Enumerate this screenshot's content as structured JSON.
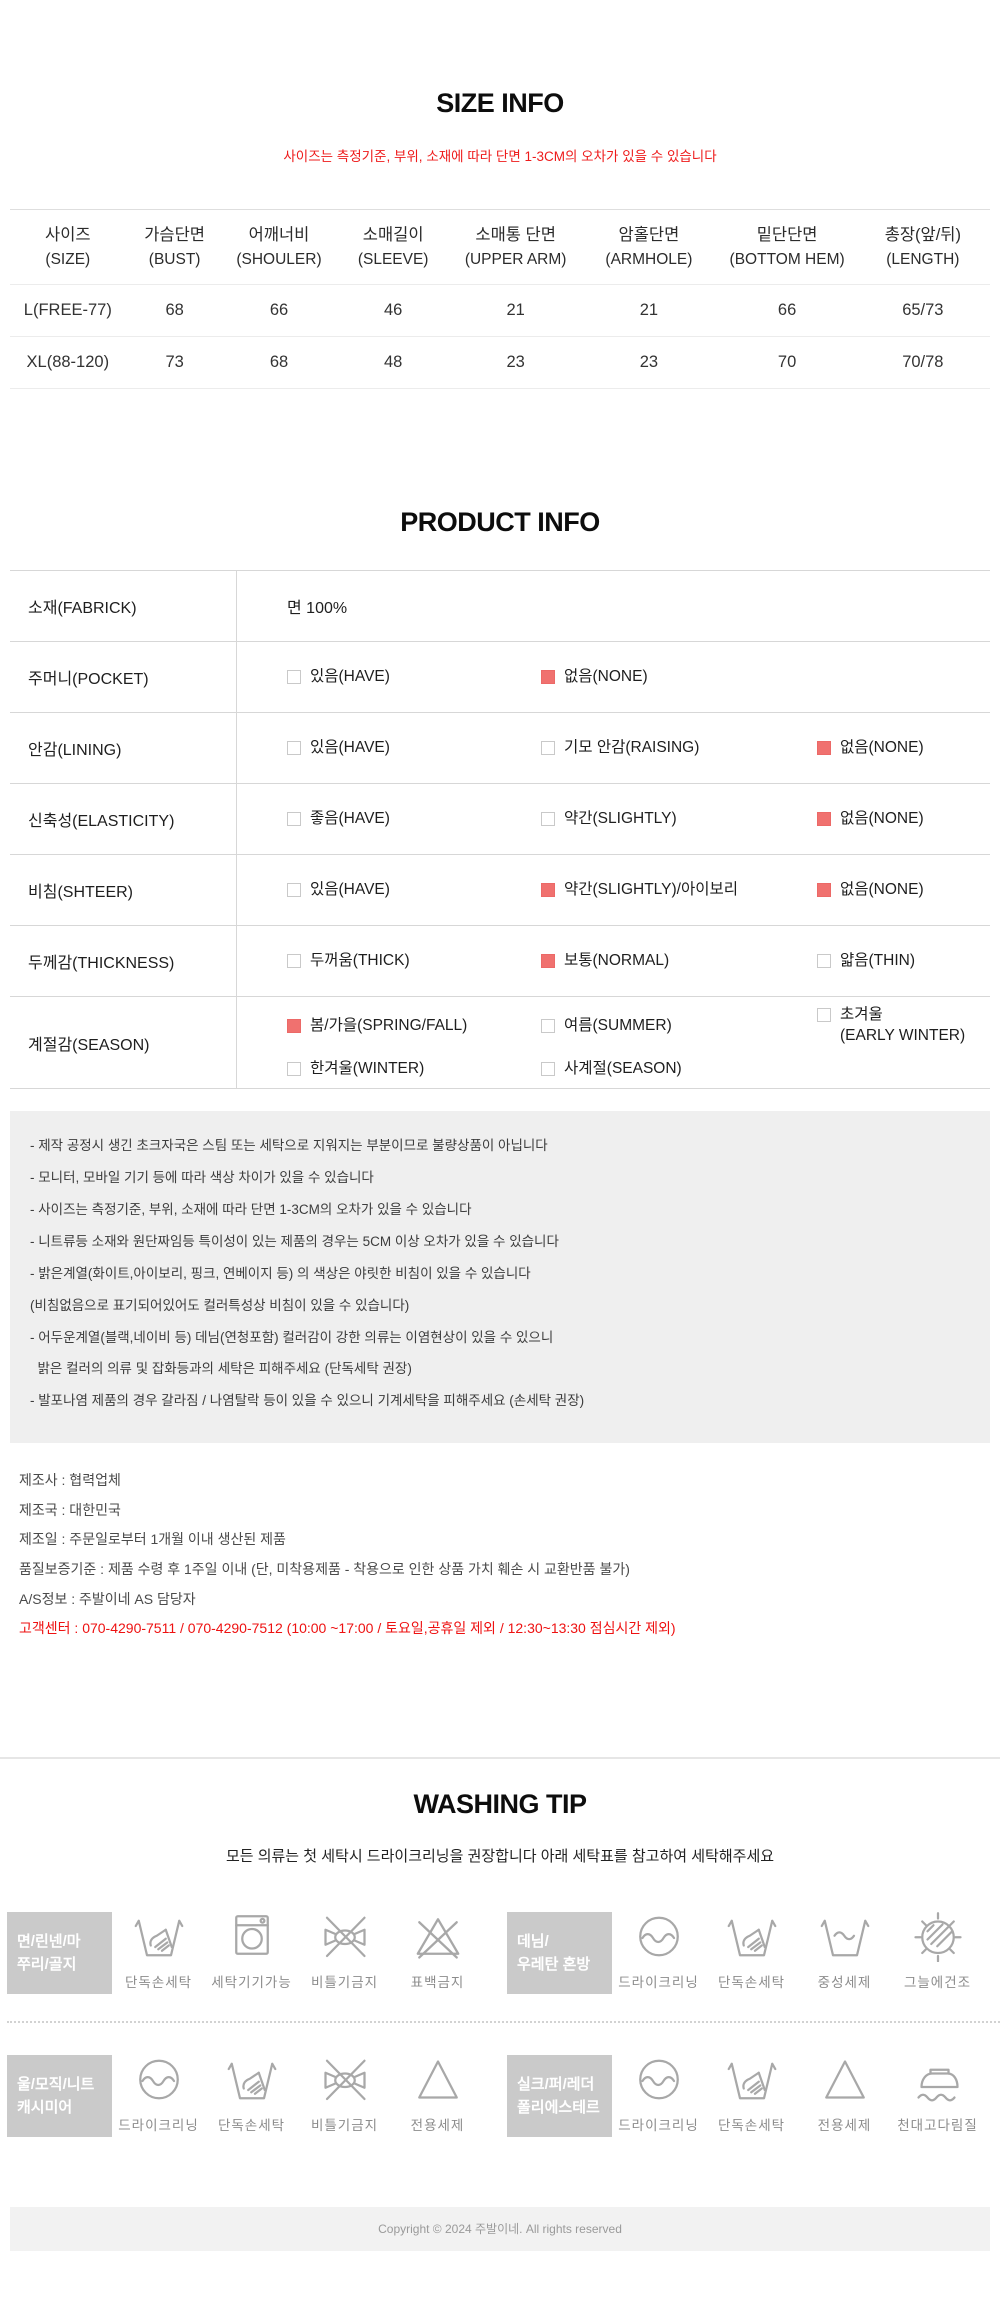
{
  "colors": {
    "accent_red": "#ee1b1b",
    "checkbox_checked": "#f0716f",
    "fabric_label_gray": "#cacaca",
    "notes_box_gray": "#efefef"
  },
  "size_info": {
    "title": "SIZE INFO",
    "subtitle": "사이즈는 측정기준, 부위, 소재에 따라 단면 1-3CM의 오차가 있을 수 있습니다",
    "table": {
      "headers": [
        {
          "ko": "사이즈",
          "en": "(SIZE)"
        },
        {
          "ko": "가슴단면",
          "en": "(BUST)"
        },
        {
          "ko": "어깨너비",
          "en": "(SHOULER)"
        },
        {
          "ko": "소매길이",
          "en": "(SLEEVE)"
        },
        {
          "ko": "소매통 단면",
          "en": "(UPPER ARM)"
        },
        {
          "ko": "암홀단면",
          "en": "(ARMHOLE)"
        },
        {
          "ko": "밑단단면",
          "en": "(BOTTOM HEM)"
        },
        {
          "ko": "총장(앞/뒤)",
          "en": "(LENGTH)"
        }
      ],
      "rows": [
        [
          "L(FREE-77)",
          "68",
          "66",
          "46",
          "21",
          "21",
          "66",
          "65/73"
        ],
        [
          "XL(88-120)",
          "73",
          "68",
          "48",
          "23",
          "23",
          "70",
          "70/78"
        ]
      ]
    }
  },
  "product_info": {
    "title": "PRODUCT INFO",
    "rows": [
      {
        "label": "소재(FABRICK)",
        "value": "면 100%"
      },
      {
        "label": "주머니(POCKET)",
        "options": [
          {
            "text": "있음(HAVE)",
            "checked": false
          },
          {
            "text": "없음(NONE)",
            "checked": true
          }
        ]
      },
      {
        "label": "안감(LINING)",
        "options": [
          {
            "text": "있음(HAVE)",
            "checked": false
          },
          {
            "text": "기모 안감(RAISING)",
            "checked": false
          },
          {
            "text": "없음(NONE)",
            "checked": true
          }
        ]
      },
      {
        "label": "신축성(ELASTICITY)",
        "options": [
          {
            "text": "좋음(HAVE)",
            "checked": false
          },
          {
            "text": "약간(SLIGHTLY)",
            "checked": false
          },
          {
            "text": "없음(NONE)",
            "checked": true
          }
        ]
      },
      {
        "label": "비침(SHTEER)",
        "options": [
          {
            "text": "있음(HAVE)",
            "checked": false
          },
          {
            "text": "약간(SLIGHTLY)/아이보리",
            "checked": true
          },
          {
            "text": "없음(NONE)",
            "checked": true
          }
        ]
      },
      {
        "label": "두께감(THICKNESS)",
        "options": [
          {
            "text": "두꺼움(THICK)",
            "checked": false
          },
          {
            "text": "보통(NORMAL)",
            "checked": true
          },
          {
            "text": "얇음(THIN)",
            "checked": false
          }
        ]
      },
      {
        "label": "계절감(SEASON)",
        "options": [
          {
            "text": "봄/가을(SPRING/FALL)",
            "checked": true
          },
          {
            "text": "여름(SUMMER)",
            "checked": false
          },
          {
            "text": "초겨울\n(EARLY WINTER)",
            "checked": false
          },
          {
            "text": "한겨울(WINTER)",
            "checked": false
          },
          {
            "text": "사계절(SEASON)",
            "checked": false
          }
        ]
      }
    ]
  },
  "notices": {
    "lines": [
      "- 제작 공정시 생긴 초크자국은 스팀 또는 세탁으로 지워지는 부분이므로 불량상품이 아닙니다",
      "- 모니터, 모바일 기기 등에 따라 색상 차이가 있을 수 있습니다",
      "- 사이즈는 측정기준, 부위, 소재에 따라 단면 1-3CM의 오차가 있을 수 있습니다",
      "- 니트류등 소재와 원단짜임등 특이성이 있는 제품의 경우는 5CM 이상 오차가 있을 수 있습니다",
      "- 밝은계열(화이트,아이보리, 핑크, 연베이지 등) 의 색상은 야릿한 비침이 있을 수 있습니다",
      "(비침없음으로 표기되어있어도 컬러특성상 비침이 있을 수 있습니다)",
      "- 어두운계열(블랙,네이비 등) 데님(연청포함) 컬러감이 강한 의류는 이염현상이 있을 수 있으니",
      "  밝은 컬러의 의류 및 잡화등과의 세탁은 피해주세요 (단독세탁 권장)",
      "- 발포나염 제품의 경우 갈라짐 / 나염탈락 등이 있을 수 있으니 기계세탁을 피해주세요 (손세탁 권장)"
    ]
  },
  "maker_info": {
    "lines": [
      "제조사 : 협력업체",
      "제조국 : 대한민국",
      "제조일 :  주문일로부터 1개월 이내 생산된 제품",
      "품질보증기준 : 제품 수령 후 1주일 이내 (단, 미착용제품 - 착용으로 인한 상품 가치 훼손 시 교환반품 불가)",
      "A/S정보 : 주발이네 AS 담당자"
    ],
    "customer_center": "고객센터 : 070-4290-7511 / 070-4290-7512 (10:00 ~17:00 / 토요일,공휴일 제외 / 12:30~13:30 점심시간 제외)"
  },
  "washing": {
    "title": "WASHING TIP",
    "subtitle": "모든 의류는 첫 세탁시 드라이크리닝을 권장합니다 아래 세탁표를 참고하여 세탁해주세요",
    "groups": [
      [
        {
          "label": "면/린넨/마\n쭈리/골지",
          "items": [
            {
              "icon": "hand-wash",
              "text": "단독손세탁"
            },
            {
              "icon": "machine-wash",
              "text": "세탁기기가능"
            },
            {
              "icon": "no-wring",
              "text": "비틀기금지"
            },
            {
              "icon": "no-bleach",
              "text": "표백금지"
            }
          ]
        },
        {
          "label": "데님/\n우레탄 혼방",
          "items": [
            {
              "icon": "dry-clean",
              "text": "드라이크리닝"
            },
            {
              "icon": "hand-wash",
              "text": "단독손세탁"
            },
            {
              "icon": "neutral-detergent",
              "text": "중성세제"
            },
            {
              "icon": "shade-dry",
              "text": "그늘에건조"
            }
          ]
        }
      ],
      [
        {
          "label": "울/모직/니트\n캐시미어",
          "items": [
            {
              "icon": "dry-clean",
              "text": "드라이크리닝"
            },
            {
              "icon": "hand-wash",
              "text": "단독손세탁"
            },
            {
              "icon": "no-wring",
              "text": "비틀기금지"
            },
            {
              "icon": "special-detergent",
              "text": "전용세제"
            }
          ]
        },
        {
          "label": "실크/퍼/레더\n폴리에스테르",
          "items": [
            {
              "icon": "dry-clean",
              "text": "드라이크리닝"
            },
            {
              "icon": "hand-wash",
              "text": "단독손세탁"
            },
            {
              "icon": "special-detergent",
              "text": "전용세제"
            },
            {
              "icon": "cloth-iron",
              "text": "천대고다림질"
            }
          ]
        }
      ]
    ]
  },
  "footer": {
    "copyright": "Copyright © 2024 주발이네. All rights reserved"
  }
}
